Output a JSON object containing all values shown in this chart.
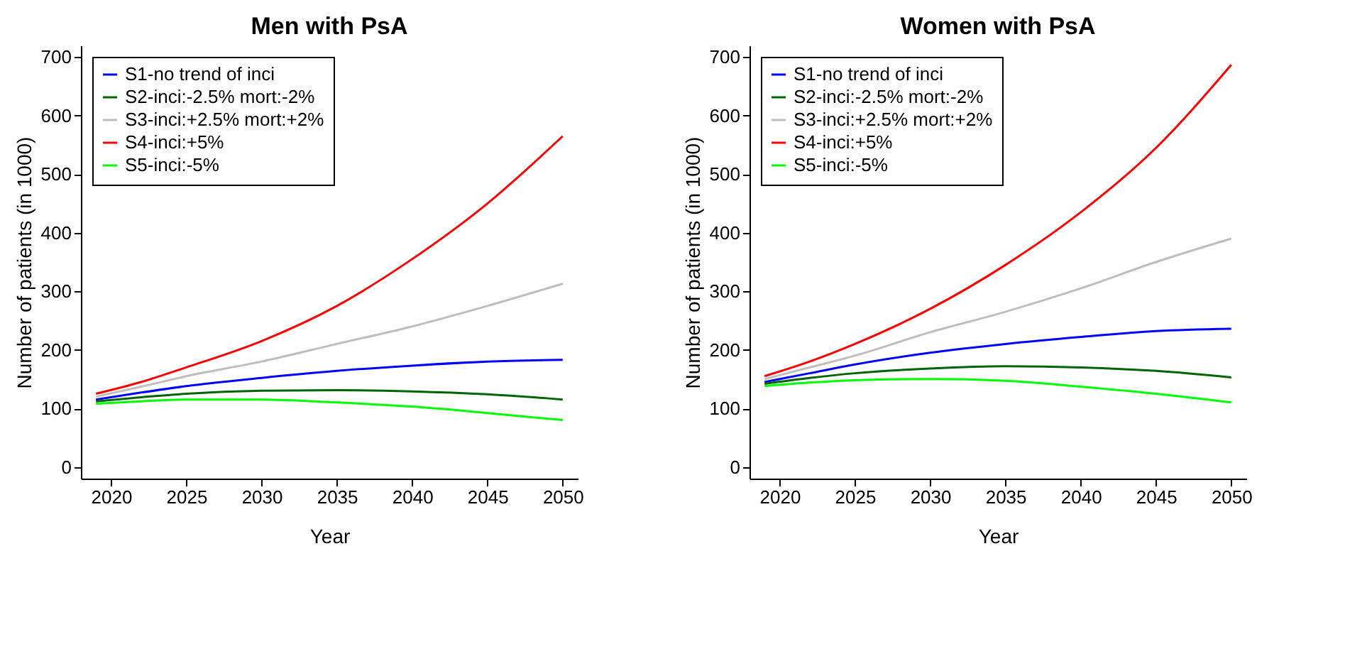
{
  "chart_data": [
    {
      "type": "line",
      "title": "Men with PsA",
      "xlabel": "Year",
      "ylabel": "Number of patients (in 1000)",
      "x": [
        2019,
        2022,
        2025,
        2030,
        2035,
        2040,
        2045,
        2050
      ],
      "xlim": [
        2018,
        2051
      ],
      "ylim": [
        -20,
        720
      ],
      "xticks": [
        2020,
        2025,
        2030,
        2035,
        2040,
        2045,
        2050
      ],
      "yticks": [
        0,
        100,
        200,
        300,
        400,
        500,
        600,
        700
      ],
      "legend": "top left",
      "grid": false,
      "series": [
        {
          "name": "S1-no trend of inci",
          "color": "#0000ff",
          "values": [
            115,
            127,
            138,
            152,
            164,
            173,
            180,
            183
          ]
        },
        {
          "name": "S2-inci:-2.5% mort:-2%",
          "color": "#006400",
          "values": [
            112,
            119,
            125,
            130,
            131,
            129,
            124,
            115
          ]
        },
        {
          "name": "S3-inci:+2.5% mort:+2%",
          "color": "#bebebe",
          "values": [
            120,
            137,
            155,
            180,
            210,
            240,
            275,
            313
          ]
        },
        {
          "name": "S4-inci:+5%",
          "color": "#ff0000",
          "values": [
            125,
            145,
            170,
            215,
            275,
            355,
            450,
            565
          ]
        },
        {
          "name": "S5-inci:-5%",
          "color": "#00ff00",
          "values": [
            108,
            112,
            115,
            115,
            110,
            103,
            92,
            80
          ]
        }
      ]
    },
    {
      "type": "line",
      "title": "Women with PsA",
      "xlabel": "Year",
      "ylabel": "Number of patients (in 1000)",
      "x": [
        2019,
        2022,
        2025,
        2030,
        2035,
        2040,
        2045,
        2050
      ],
      "xlim": [
        2018,
        2051
      ],
      "ylim": [
        -20,
        720
      ],
      "xticks": [
        2020,
        2025,
        2030,
        2035,
        2040,
        2045,
        2050
      ],
      "yticks": [
        0,
        100,
        200,
        300,
        400,
        500,
        600,
        700
      ],
      "legend": "top left",
      "grid": false,
      "series": [
        {
          "name": "S1-no trend of inci",
          "color": "#0000ff",
          "values": [
            145,
            160,
            175,
            195,
            210,
            222,
            232,
            236
          ]
        },
        {
          "name": "S2-inci:-2.5% mort:-2%",
          "color": "#006400",
          "values": [
            142,
            152,
            160,
            168,
            172,
            170,
            164,
            153
          ]
        },
        {
          "name": "S3-inci:+2.5% mort:+2%",
          "color": "#bebebe",
          "values": [
            150,
            170,
            190,
            230,
            265,
            305,
            350,
            390
          ]
        },
        {
          "name": "S4-inci:+5%",
          "color": "#ff0000",
          "values": [
            155,
            180,
            210,
            270,
            345,
            435,
            545,
            687
          ]
        },
        {
          "name": "S5-inci:-5%",
          "color": "#00ff00",
          "values": [
            138,
            144,
            148,
            150,
            147,
            137,
            125,
            110
          ]
        }
      ]
    }
  ]
}
